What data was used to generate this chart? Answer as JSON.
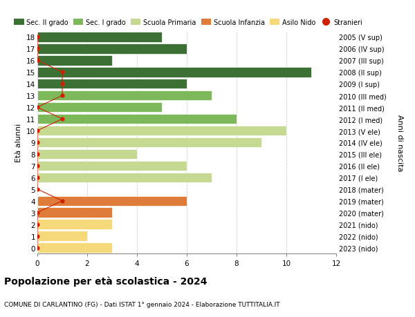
{
  "ages": [
    0,
    1,
    2,
    3,
    4,
    5,
    6,
    7,
    8,
    9,
    10,
    11,
    12,
    13,
    14,
    15,
    16,
    17,
    18
  ],
  "right_labels": [
    "2023 (nido)",
    "2022 (nido)",
    "2021 (nido)",
    "2020 (mater)",
    "2019 (mater)",
    "2018 (mater)",
    "2017 (I ele)",
    "2016 (II ele)",
    "2015 (III ele)",
    "2014 (IV ele)",
    "2013 (V ele)",
    "2012 (I med)",
    "2011 (II med)",
    "2010 (III med)",
    "2009 (I sup)",
    "2008 (II sup)",
    "2007 (III sup)",
    "2006 (IV sup)",
    "2005 (V sup)"
  ],
  "bar_values": [
    3,
    2,
    3,
    3,
    6,
    0,
    7,
    6,
    4,
    9,
    10,
    8,
    5,
    7,
    6,
    11,
    3,
    6,
    5
  ],
  "bar_colors": [
    "#f5d97a",
    "#f5d97a",
    "#f5d97a",
    "#e07c3a",
    "#e07c3a",
    "#e07c3a",
    "#c5d990",
    "#c5d990",
    "#c5d990",
    "#c5d990",
    "#c5d990",
    "#7db85a",
    "#7db85a",
    "#7db85a",
    "#3d7035",
    "#3d7035",
    "#3d7035",
    "#3d7035",
    "#3d7035"
  ],
  "stranieri_x": [
    0,
    0,
    0,
    0,
    1,
    0,
    0,
    0,
    0,
    0,
    0,
    1,
    0,
    1,
    1,
    1,
    0,
    0,
    0
  ],
  "title_bold": "Popolazione per età scolastica - 2024",
  "subtitle": "COMUNE DI CARLANTINO (FG) - Dati ISTAT 1° gennaio 2024 - Elaborazione TUTTITALIA.IT",
  "ylabel_left": "Età alunni",
  "ylabel_right": "Anni di nascita",
  "legend_labels": [
    "Sec. II grado",
    "Sec. I grado",
    "Scuola Primaria",
    "Scuola Infanzia",
    "Asilo Nido",
    "Stranieri"
  ],
  "legend_colors": [
    "#3d7035",
    "#7db85a",
    "#c5d990",
    "#e07c3a",
    "#f5d97a",
    "#cc2200"
  ],
  "color_stranieri": "#cc2200",
  "xlim": [
    0,
    12
  ],
  "grid_color": "#cccccc",
  "bg_color": "#ffffff",
  "bar_edgecolor": "#ffffff",
  "bar_height": 0.85
}
